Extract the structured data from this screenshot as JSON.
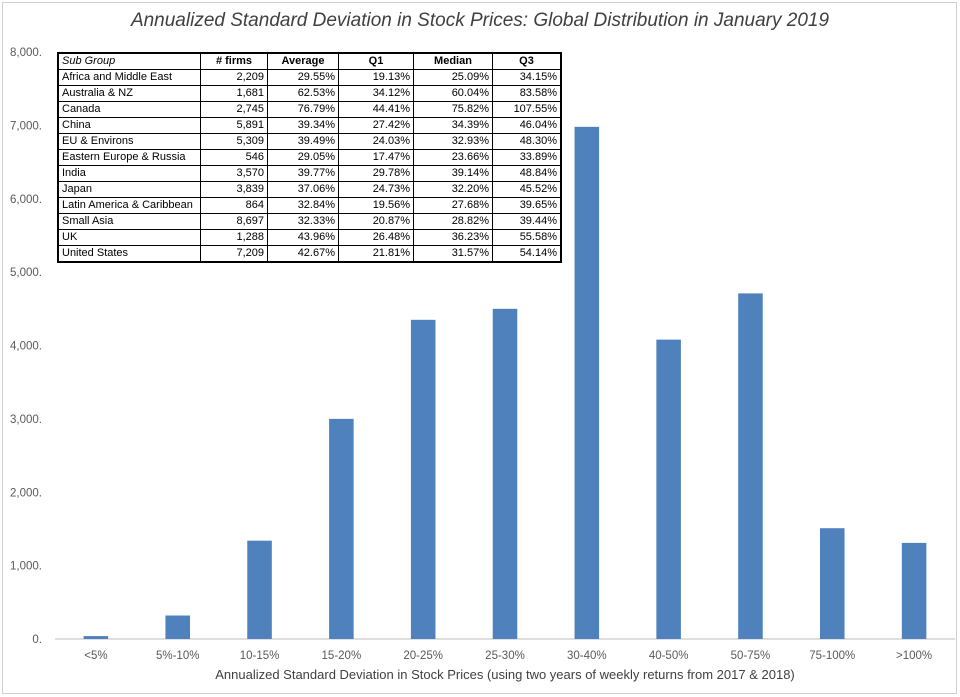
{
  "chart_data": {
    "type": "bar",
    "title": "Annualized Standard Deviation in Stock Prices: Global Distribution in January 2019",
    "xlabel": "Annualized Standard Deviation in Stock Prices (using two years of weekly returns from 2017 & 2018)",
    "ylabel": "",
    "ylim": [
      0,
      8000
    ],
    "yticks": [
      "0.",
      "1,000.",
      "2,000.",
      "3,000.",
      "4,000.",
      "5,000.",
      "6,000.",
      "7,000.",
      "8,000."
    ],
    "grid": false,
    "categories": [
      "<5%",
      "5%-10%",
      "10-15%",
      "15-20%",
      "20-25%",
      "25-30%",
      "30-40%",
      "40-50%",
      "50-75%",
      "75-100%",
      ">100%"
    ],
    "values": [
      40,
      320,
      1340,
      3000,
      4350,
      4500,
      6980,
      4080,
      4710,
      1510,
      1310
    ],
    "bar_color": "#4f81bd"
  },
  "table": {
    "headers": [
      "Sub Group",
      "# firms",
      "Average",
      "Q1",
      "Median",
      "Q3"
    ],
    "rows": [
      [
        "Africa and Middle East",
        "2,209",
        "29.55%",
        "19.13%",
        "25.09%",
        "34.15%"
      ],
      [
        "Australia & NZ",
        "1,681",
        "62.53%",
        "34.12%",
        "60.04%",
        "83.58%"
      ],
      [
        "Canada",
        "2,745",
        "76.79%",
        "44.41%",
        "75.82%",
        "107.55%"
      ],
      [
        "China",
        "5,891",
        "39.34%",
        "27.42%",
        "34.39%",
        "46.04%"
      ],
      [
        "EU & Environs",
        "5,309",
        "39.49%",
        "24.03%",
        "32.93%",
        "48.30%"
      ],
      [
        "Eastern Europe & Russia",
        "546",
        "29.05%",
        "17.47%",
        "23.66%",
        "33.89%"
      ],
      [
        "India",
        "3,570",
        "39.77%",
        "29.78%",
        "39.14%",
        "48.84%"
      ],
      [
        "Japan",
        "3,839",
        "37.06%",
        "24.73%",
        "32.20%",
        "45.52%"
      ],
      [
        "Latin America & Caribbean",
        "864",
        "32.84%",
        "19.56%",
        "27.68%",
        "39.65%"
      ],
      [
        "Small Asia",
        "8,697",
        "32.33%",
        "20.87%",
        "28.82%",
        "39.44%"
      ],
      [
        "UK",
        "1,288",
        "43.96%",
        "26.48%",
        "36.23%",
        "55.58%"
      ],
      [
        "United States",
        "7,209",
        "42.67%",
        "21.81%",
        "31.57%",
        "54.14%"
      ]
    ]
  }
}
